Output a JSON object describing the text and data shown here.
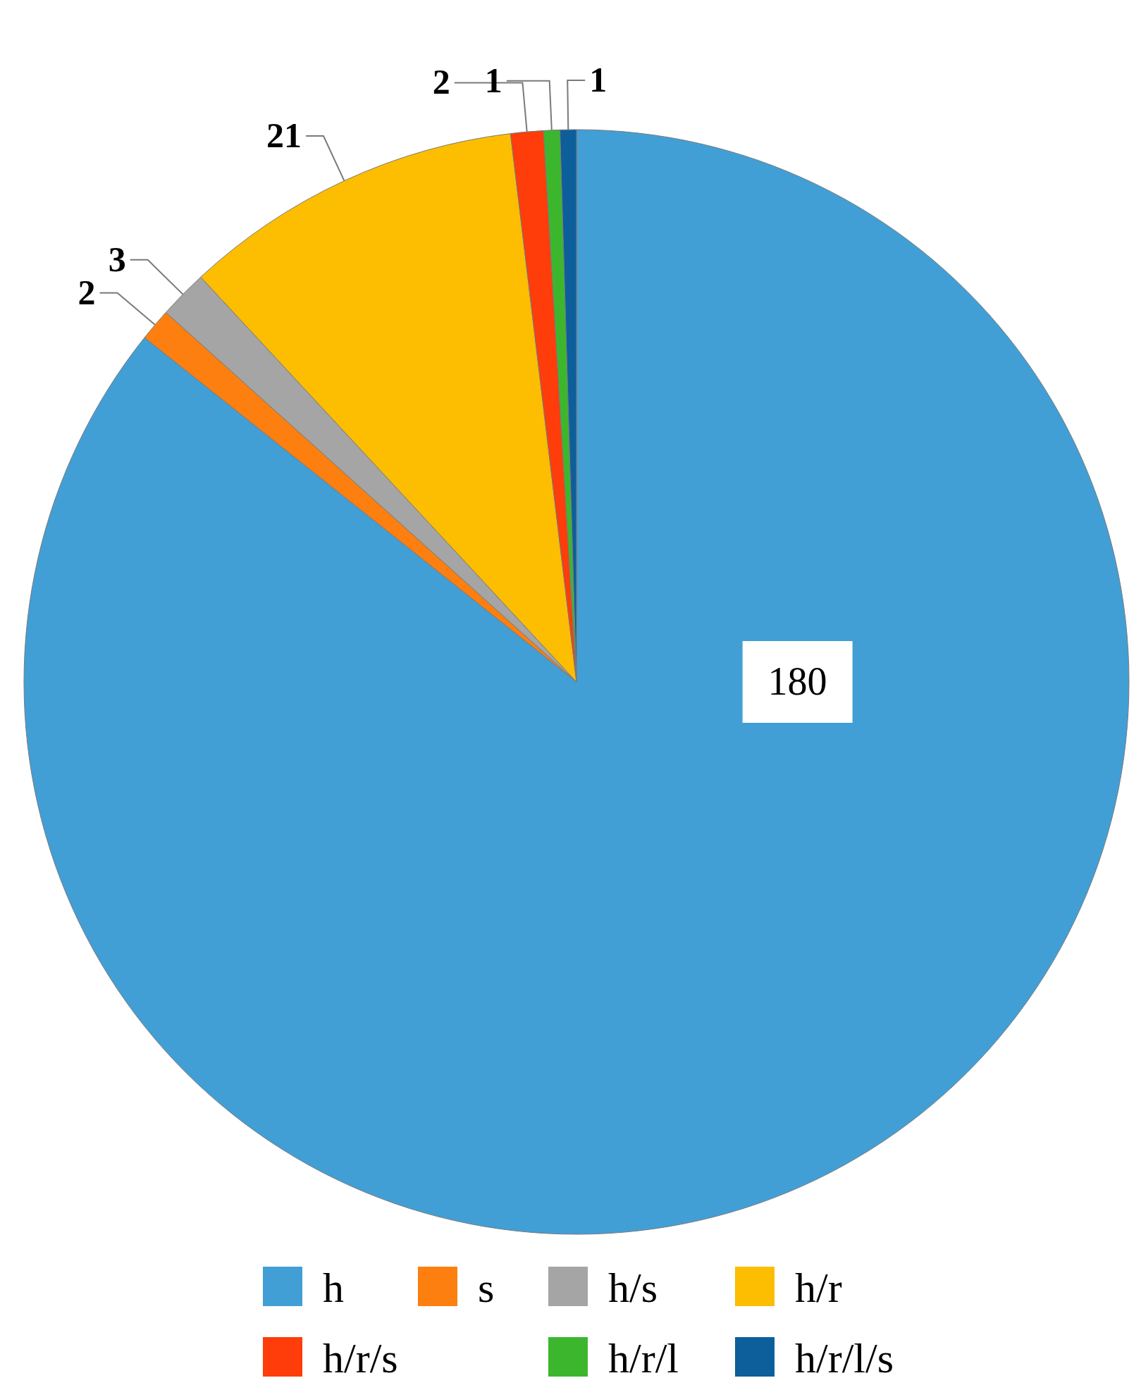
{
  "chart_data": {
    "type": "pie",
    "categories": [
      "h",
      "s",
      "h/s",
      "h/r",
      "h/r/s",
      "h/r/l",
      "h/r/l/s"
    ],
    "values": [
      180,
      2,
      3,
      21,
      2,
      1,
      1
    ],
    "colors": [
      "#419fd6",
      "#fd7f0f",
      "#a5a5a5",
      "#fdbd01",
      "#fe3d0a",
      "#3cb72d",
      "#0c5f9a"
    ],
    "data_labels": true,
    "legend": "bottom"
  }
}
